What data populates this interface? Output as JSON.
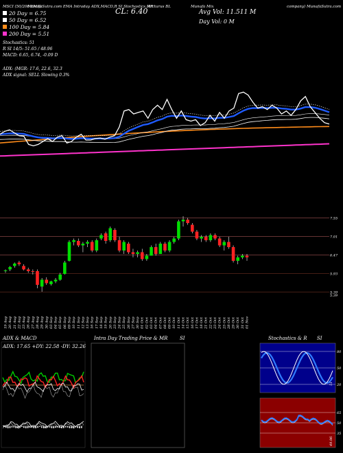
{
  "header": {
    "top_left": "MSCI (50/200 EMA)",
    "line1": [
      "MunafaSutra.com  EMA  Intraday  ADX,MACD,R  SI,Stochastics,MR",
      "CL: 6.40",
      "Arcturus BL",
      "Avg Vol: 11.511 M",
      "Munafa Mix",
      "company) MunafaSutra.com"
    ],
    "legend": [
      {
        "text": "20  Day = 6.75",
        "color": "#ffffff"
      },
      {
        "text": "50  Day = 6.52",
        "color": "#ffffff"
      },
      {
        "text": "100  Day = 5.84",
        "color": "#ff8c1a"
      },
      {
        "text": "200  Day = 5.51",
        "color": "#ff33cc"
      }
    ],
    "day_vol": "Day Vol: 0   M",
    "stoch_line1": "Stochastics: 51",
    "stoch_line2": "R           SI 14/5: 51.65 / 48.96",
    "macd_line": "MACD: 6.65, 6.74,  -0.09 D",
    "adx_line1": "ADX:                     (MGR: 17.6, 22.6, 32.3",
    "adx_line2": "ADX  signal: SELL  Slowing 0.3%"
  },
  "price_levels": [
    "7.55",
    "7.01",
    "6.47",
    "5.93",
    "5.39",
    "5.39"
  ],
  "dates": [
    "19 Aug",
    "20 Aug",
    "21 Aug",
    "22 Aug",
    "23 Aug",
    "26 Aug",
    "27 Aug",
    "28 Aug",
    "29 Aug",
    "30 Aug",
    "03 Sep",
    "04 Sep",
    "05 Sep",
    "06 Sep",
    "09 Sep",
    "10 Sep",
    "11 Sep",
    "12 Sep",
    "13 Sep",
    "16 Sep",
    "17 Sep",
    "18 Sep",
    "19 Sep",
    "20 Sep",
    "23 Sep",
    "24 Sep",
    "25 Sep",
    "26 Sep",
    "27 Sep",
    "30 Sep",
    "01 Oct",
    "02 Oct",
    "03 Oct",
    "04 Oct",
    "07 Oct",
    "08 Oct",
    "09 Oct",
    "10 Oct",
    "11 Oct",
    "14 Oct",
    "15 Oct",
    "16 Oct",
    "17 Oct",
    "18 Oct",
    "21 Oct",
    "22 Oct",
    "23 Oct",
    "24 Oct",
    "25 Oct",
    "28 Oct",
    "29 Oct",
    "30 Oct",
    "31 Oct",
    "01 Nov"
  ],
  "panels": {
    "adx_title": "ADX  & MACD",
    "adx_values": "ADX: 17.65 +DY: 22.58  -DY: 32.26",
    "intraday_title": "Intra  Day Trading Price  & MR",
    "intraday_si": "SI",
    "stoch_title": "Stochastics & R",
    "stoch_si": "SI",
    "stoch_levels": [
      "80",
      "50",
      "20"
    ],
    "stoch_value": "51",
    "rsi_levels": [
      "65",
      "50",
      "35"
    ],
    "rsi_value": "49.96"
  },
  "chart_data": {
    "type": "candlestick",
    "categories_ref": "dates",
    "ohlc": [
      [
        6.0,
        6.05,
        5.95,
        6.02
      ],
      [
        6.05,
        6.15,
        6.0,
        6.12
      ],
      [
        6.15,
        6.25,
        6.1,
        6.22
      ],
      [
        6.25,
        6.3,
        6.15,
        6.2
      ],
      [
        6.15,
        6.2,
        6.02,
        6.05
      ],
      [
        6.05,
        6.1,
        5.95,
        6.0
      ],
      [
        6.0,
        6.05,
        5.9,
        5.98
      ],
      [
        6.0,
        6.05,
        5.5,
        5.6
      ],
      [
        5.55,
        5.8,
        5.4,
        5.75
      ],
      [
        5.75,
        5.82,
        5.6,
        5.65
      ],
      [
        5.62,
        5.72,
        5.58,
        5.7
      ],
      [
        5.7,
        5.8,
        5.65,
        5.75
      ],
      [
        5.75,
        5.95,
        5.72,
        5.9
      ],
      [
        5.92,
        6.3,
        5.9,
        6.25
      ],
      [
        6.3,
        6.9,
        6.28,
        6.85
      ],
      [
        6.85,
        6.95,
        6.75,
        6.9
      ],
      [
        6.88,
        6.95,
        6.7,
        6.75
      ],
      [
        6.75,
        6.85,
        6.55,
        6.8
      ],
      [
        6.8,
        6.9,
        6.7,
        6.85
      ],
      [
        6.85,
        6.9,
        6.55,
        6.6
      ],
      [
        6.6,
        6.95,
        6.55,
        6.9
      ],
      [
        6.95,
        7.1,
        6.9,
        7.05
      ],
      [
        7.1,
        7.15,
        6.8,
        6.88
      ],
      [
        6.9,
        7.3,
        6.85,
        7.25
      ],
      [
        7.2,
        7.25,
        6.85,
        6.9
      ],
      [
        6.9,
        7.0,
        6.55,
        6.6
      ],
      [
        6.6,
        6.9,
        6.5,
        6.85
      ],
      [
        6.8,
        6.85,
        6.5,
        6.55
      ],
      [
        6.55,
        6.65,
        6.4,
        6.5
      ],
      [
        6.5,
        6.6,
        6.4,
        6.55
      ],
      [
        6.55,
        6.65,
        6.3,
        6.35
      ],
      [
        6.35,
        6.5,
        6.3,
        6.45
      ],
      [
        6.45,
        6.75,
        6.45,
        6.7
      ],
      [
        6.7,
        6.8,
        6.45,
        6.5
      ],
      [
        6.5,
        6.85,
        6.5,
        6.8
      ],
      [
        6.8,
        6.85,
        6.55,
        6.6
      ],
      [
        6.6,
        6.9,
        6.55,
        6.85
      ],
      [
        6.85,
        7.0,
        6.8,
        6.95
      ],
      [
        6.95,
        7.5,
        6.9,
        7.45
      ],
      [
        7.45,
        7.6,
        7.3,
        7.5
      ],
      [
        7.5,
        7.55,
        7.35,
        7.4
      ],
      [
        7.35,
        7.4,
        7.1,
        7.15
      ],
      [
        7.15,
        7.2,
        6.9,
        6.95
      ],
      [
        6.95,
        7.05,
        6.85,
        7.0
      ],
      [
        7.0,
        7.05,
        6.85,
        6.9
      ],
      [
        6.9,
        7.1,
        6.85,
        7.05
      ],
      [
        7.05,
        7.1,
        6.9,
        6.95
      ],
      [
        6.95,
        7.0,
        6.7,
        6.75
      ],
      [
        6.75,
        6.9,
        6.6,
        6.85
      ],
      [
        6.85,
        7.0,
        6.65,
        6.7
      ],
      [
        6.7,
        6.75,
        6.25,
        6.3
      ],
      [
        6.3,
        6.45,
        6.2,
        6.4
      ],
      [
        6.4,
        6.5,
        6.35,
        6.45
      ],
      [
        6.45,
        6.5,
        6.3,
        6.4
      ]
    ],
    "ema": [
      {
        "name": "20 Day",
        "color": "#ffffff"
      },
      {
        "name": "50 Day",
        "color": "#ffffff"
      },
      {
        "name": "100 Day",
        "color": "#ff8c1a"
      },
      {
        "name": "200 Day",
        "color": "#ff33cc"
      }
    ]
  }
}
